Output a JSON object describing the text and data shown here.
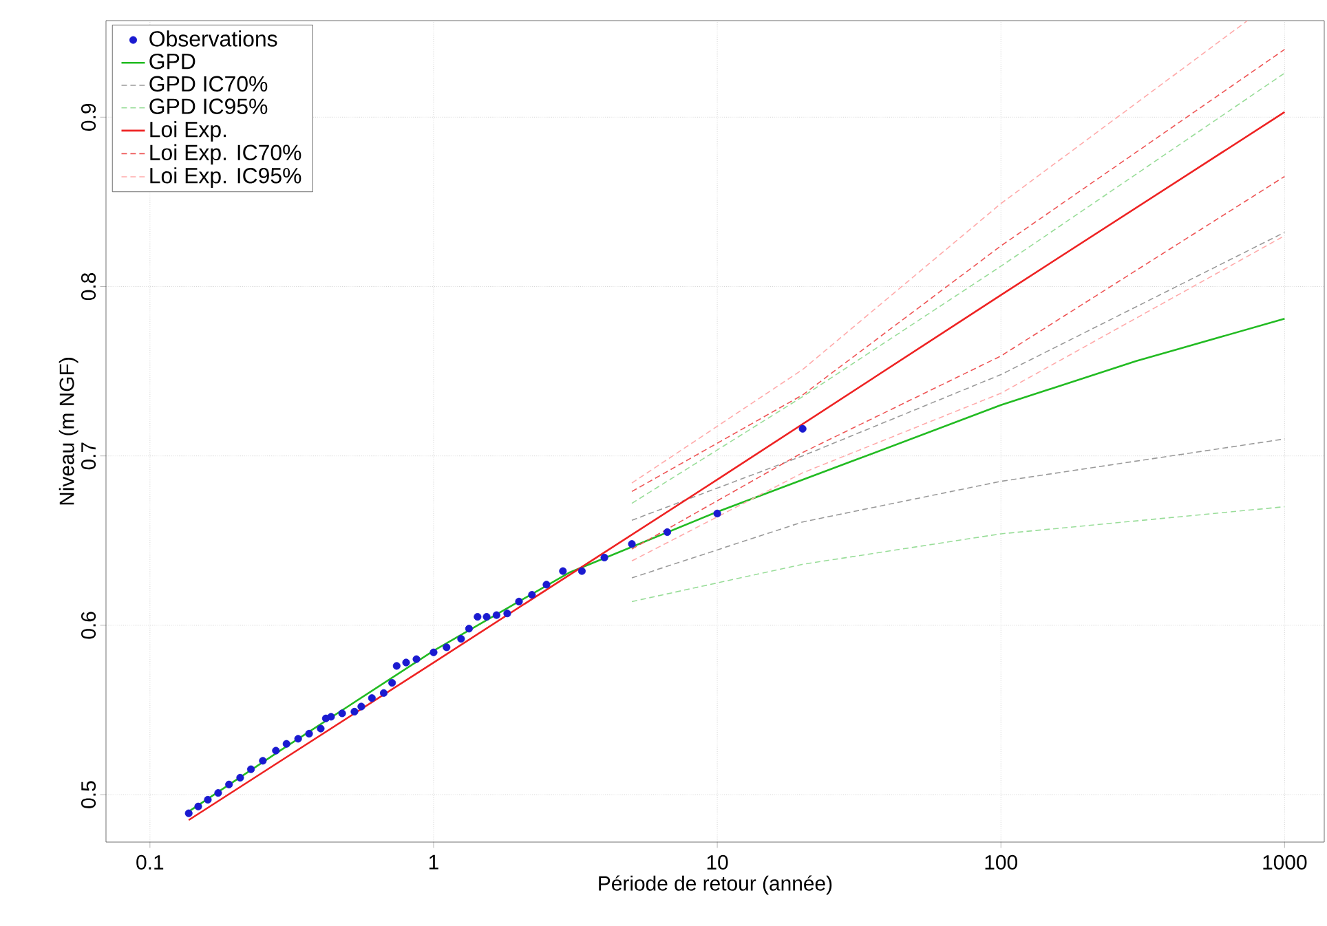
{
  "chart_data": {
    "type": "line",
    "xlabel": "Période de retour (année)",
    "ylabel": "Niveau (m NGF)",
    "log": "x",
    "grid": true,
    "legend": "top left",
    "xlim": [
      0.07,
      1380
    ],
    "ylim": [
      0.472,
      0.957
    ],
    "xticks": [
      0.1,
      1,
      10,
      100,
      1000
    ],
    "yticks": [
      0.5,
      0.6,
      0.7,
      0.8,
      0.9
    ],
    "series": [
      {
        "name": "Observations",
        "type": "scatter",
        "marker": "circle",
        "color": "#1a1ad0",
        "x": [
          20,
          10,
          6.667,
          5,
          4,
          3.333,
          2.857,
          2.5,
          2.222,
          2.0,
          1.818,
          1.667,
          1.538,
          1.429,
          1.333,
          1.25,
          1.111,
          1.0,
          0.87,
          0.8,
          0.741,
          0.714,
          0.667,
          0.606,
          0.556,
          0.526,
          0.476,
          0.435,
          0.417,
          0.4,
          0.364,
          0.333,
          0.303,
          0.278,
          0.25,
          0.227,
          0.208,
          0.19,
          0.174,
          0.16,
          0.148,
          0.137
        ],
        "values": [
          0.716,
          0.666,
          0.655,
          0.648,
          0.64,
          0.632,
          0.632,
          0.624,
          0.618,
          0.614,
          0.607,
          0.606,
          0.605,
          0.605,
          0.598,
          0.592,
          0.587,
          0.584,
          0.58,
          0.578,
          0.576,
          0.566,
          0.56,
          0.557,
          0.552,
          0.549,
          0.548,
          0.546,
          0.545,
          0.539,
          0.536,
          0.533,
          0.53,
          0.526,
          0.52,
          0.515,
          0.51,
          0.506,
          0.501,
          0.497,
          0.493,
          0.489
        ]
      },
      {
        "name": "GPD",
        "line_style": "solid",
        "color": "#22bb22",
        "x": [
          0.137,
          0.3,
          1,
          3,
          10,
          30,
          100,
          300,
          1000
        ],
        "values": [
          0.49,
          0.528,
          0.585,
          0.631,
          0.667,
          0.697,
          0.73,
          0.756,
          0.781
        ]
      },
      {
        "name": "GPD IC70%",
        "line_style": "dashed",
        "color": "#9a9a9a",
        "x": [
          5,
          20,
          100,
          1000
        ],
        "values": [
          0.662,
          0.7,
          0.748,
          0.832
        ]
      },
      {
        "line_style": "dashed",
        "color": "#9a9a9a",
        "x": [
          5,
          20,
          100,
          1000
        ],
        "values": [
          0.628,
          0.661,
          0.685,
          0.71
        ]
      },
      {
        "name": "GPD IC95%",
        "line_style": "dashed",
        "color": "#99dd99",
        "x": [
          5,
          20,
          100,
          1000
        ],
        "values": [
          0.672,
          0.735,
          0.812,
          0.926
        ]
      },
      {
        "line_style": "dashed",
        "color": "#99dd99",
        "x": [
          5,
          20,
          100,
          1000
        ],
        "values": [
          0.614,
          0.636,
          0.654,
          0.67
        ]
      },
      {
        "name": "Loi Exp.",
        "line_style": "solid",
        "color": "#ee2222",
        "x": [
          0.137,
          1,
          10,
          100,
          1000
        ],
        "values": [
          0.485,
          0.578,
          0.686,
          0.795,
          0.903
        ]
      },
      {
        "name": "Loi Exp. IC70%",
        "line_style": "dashed",
        "color": "#ee5555",
        "x": [
          5,
          20,
          100,
          1000
        ],
        "values": [
          0.679,
          0.736,
          0.824,
          0.94
        ]
      },
      {
        "line_style": "dashed",
        "color": "#ee5555",
        "x": [
          5,
          20,
          100,
          1000
        ],
        "values": [
          0.645,
          0.702,
          0.759,
          0.865
        ]
      },
      {
        "name": "Loi Exp. IC95%",
        "line_style": "dashed",
        "color": "#ffaaaa",
        "x": [
          5,
          20,
          100,
          740
        ],
        "values": [
          0.684,
          0.751,
          0.849,
          0.957
        ]
      },
      {
        "line_style": "dashed",
        "color": "#ffaaaa",
        "x": [
          5,
          20,
          100,
          1000
        ],
        "values": [
          0.638,
          0.69,
          0.737,
          0.83
        ]
      }
    ]
  }
}
